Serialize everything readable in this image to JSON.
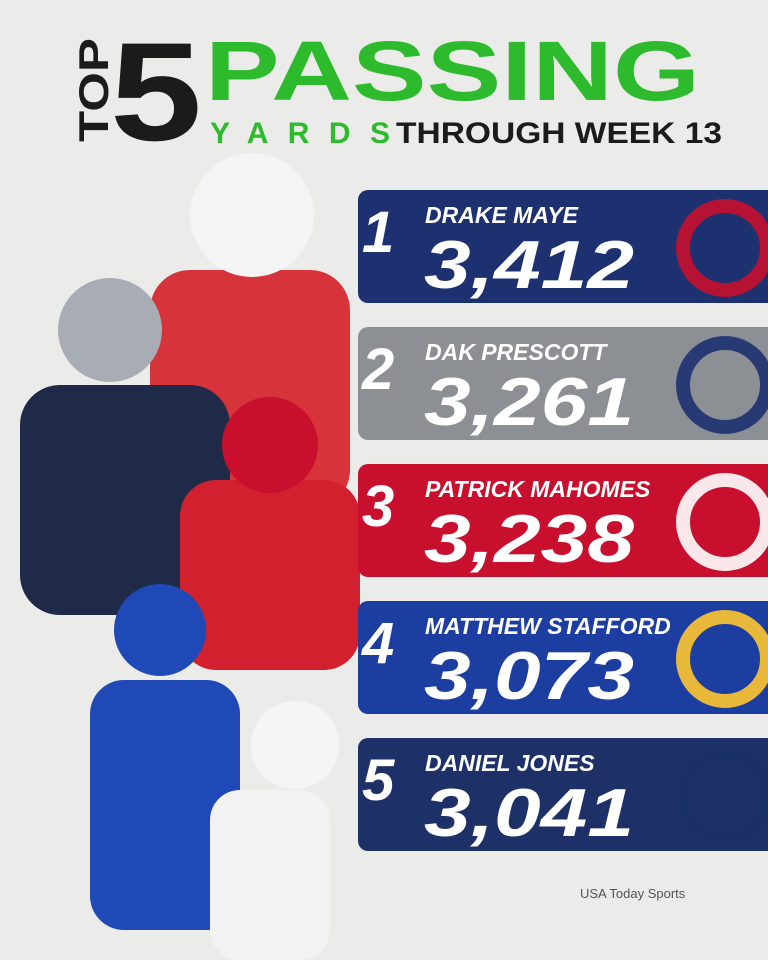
{
  "header": {
    "top": "TOP",
    "number": "5",
    "title": "PASSING",
    "subtitle_word": "YARDS",
    "subtitle": "THROUGH WEEK 13"
  },
  "entries": [
    {
      "rank": "1",
      "name": "DRAKE MAYE",
      "yards": "3,412"
    },
    {
      "rank": "2",
      "name": "DAK PRESCOTT",
      "yards": "3,261"
    },
    {
      "rank": "3",
      "name": "PATRICK MAHOMES",
      "yards": "3,238"
    },
    {
      "rank": "4",
      "name": "MATTHEW STAFFORD",
      "yards": "3,073"
    },
    {
      "rank": "5",
      "name": "DANIEL JONES",
      "yards": "3,041"
    }
  ],
  "credit": "USA Today Sports"
}
